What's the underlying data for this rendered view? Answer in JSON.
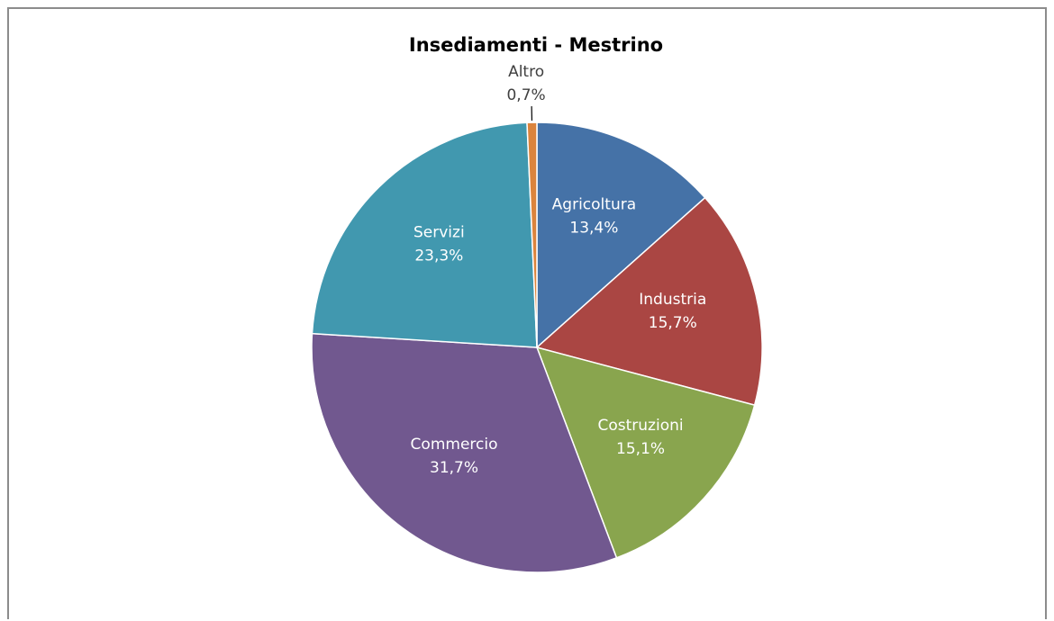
{
  "chart_data": {
    "type": "pie",
    "title": "Insediamenti - Mestrino",
    "legend": "none",
    "slices": [
      {
        "label": "Agricoltura",
        "value": 13.4,
        "value_label": "13,4%",
        "color": "#4572a7"
      },
      {
        "label": "Industria",
        "value": 15.7,
        "value_label": "15,7%",
        "color": "#aa4643"
      },
      {
        "label": "Costruzioni",
        "value": 15.1,
        "value_label": "15,1%",
        "color": "#89a54e"
      },
      {
        "label": "Commercio",
        "value": 31.7,
        "value_label": "31,7%",
        "color": "#71588f"
      },
      {
        "label": "Servizi",
        "value": 23.3,
        "value_label": "23,3%",
        "color": "#4198af"
      },
      {
        "label": "Altro",
        "value": 0.7,
        "value_label": "0,7%",
        "color": "#db843d"
      }
    ]
  }
}
